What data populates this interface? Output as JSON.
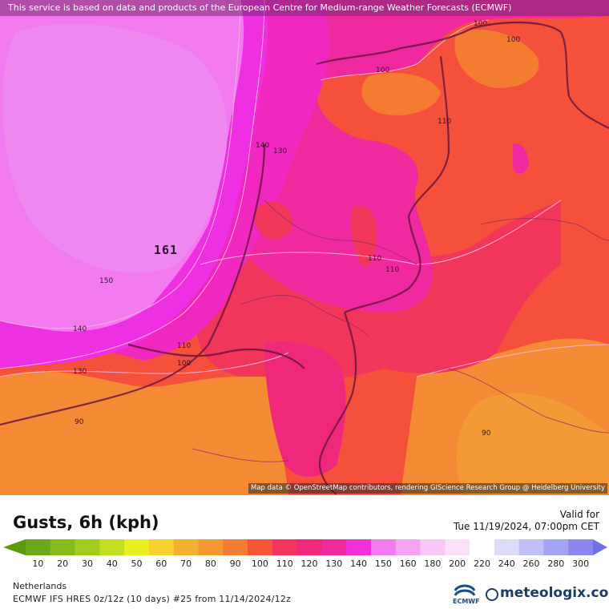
{
  "banner": "This service is based on data and products of the European Centre for Medium-range Weather Forecasts (ECMWF)",
  "map_attribution": "Map data © OpenStreetMap contributors, rendering GIScience Research Group @ Heidelberg University",
  "peak_value": "161",
  "contour_labels": [
    "100",
    "100",
    "100",
    "110",
    "140",
    "130",
    "150",
    "140",
    "130",
    "110",
    "100",
    "110",
    "110",
    "90",
    "90"
  ],
  "title": "Gusts, 6h (kph)",
  "valid_label": "Valid for",
  "valid_time": "Tue 11/19/2024, 07:00pm CET",
  "scale": {
    "values": [
      "10",
      "20",
      "30",
      "40",
      "50",
      "60",
      "70",
      "80",
      "90",
      "100",
      "110",
      "120",
      "130",
      "140",
      "150",
      "160",
      "180",
      "200",
      "220",
      "240",
      "260",
      "280",
      "300"
    ],
    "colors": [
      "#6aaa18",
      "#86bb1c",
      "#a2cc20",
      "#c4de22",
      "#eaf020",
      "#f8d22a",
      "#f4b030",
      "#f49830",
      "#f47c30",
      "#f45638",
      "#f2345e",
      "#f0287c",
      "#f02a9e",
      "#f030d8",
      "#f47af0",
      "#f8a2f4",
      "#fac8f6",
      "#fbe0fa",
      "#ffffff",
      "#dcdcf8",
      "#c0c0f6",
      "#a4a4f4",
      "#8c88f0"
    ],
    "low_arrow_color": "#5a9a10",
    "high_arrow_color": "#7070e8"
  },
  "region": "Netherlands",
  "model_run": "ECMWF IFS HRES 0z/12z (10 days) #25 from  11/14/2024/12z",
  "ecmwf_label": "ECMWF",
  "brand": "meteologix.com",
  "icons": [
    "ecmwf-logo-icon",
    "meteologix-logo-icon"
  ]
}
